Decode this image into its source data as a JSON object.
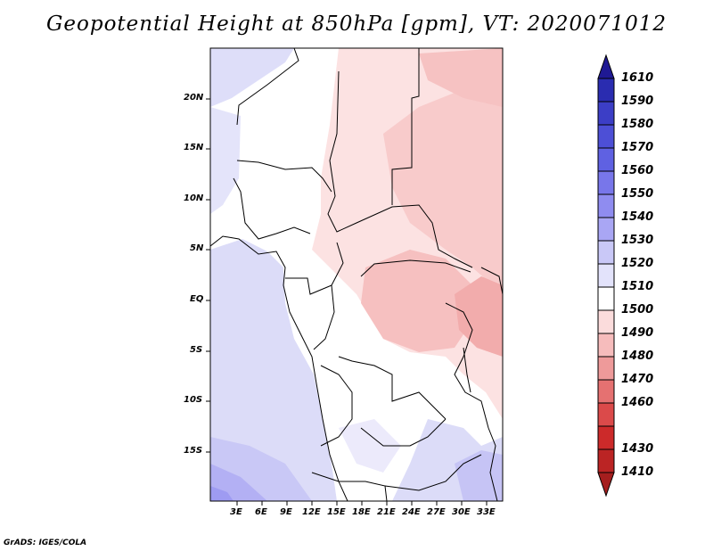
{
  "title": "Geopotential Height at 850hPa [gpm], VT: 2020071012",
  "map": {
    "lat_ticks": [
      "20N",
      "15N",
      "10N",
      "5N",
      "EQ",
      "5S",
      "10S",
      "15S"
    ],
    "lon_ticks": [
      "3E",
      "6E",
      "9E",
      "12E",
      "15E",
      "18E",
      "21E",
      "24E",
      "27E",
      "30E",
      "33E"
    ]
  },
  "colorbar": {
    "labels": [
      "1610",
      "1590",
      "1580",
      "1570",
      "1560",
      "1550",
      "1540",
      "1530",
      "1520",
      "1510",
      "1500",
      "1490",
      "1480",
      "1470",
      "1460",
      "1430",
      "1410"
    ],
    "colors": [
      "#1f1994",
      "#2a2cb0",
      "#3c3ec6",
      "#4d4fd6",
      "#5f61e2",
      "#7876ea",
      "#8f8cf0",
      "#a9a6f4",
      "#c9c8f7",
      "#e3e3fb",
      "#ffffff",
      "#fbdcdc",
      "#f6bcbc",
      "#ee9a9a",
      "#e57171",
      "#db4a4a",
      "#cc2a2a",
      "#a51e1e"
    ]
  },
  "credit": "GrADS: IGES/COLA"
}
